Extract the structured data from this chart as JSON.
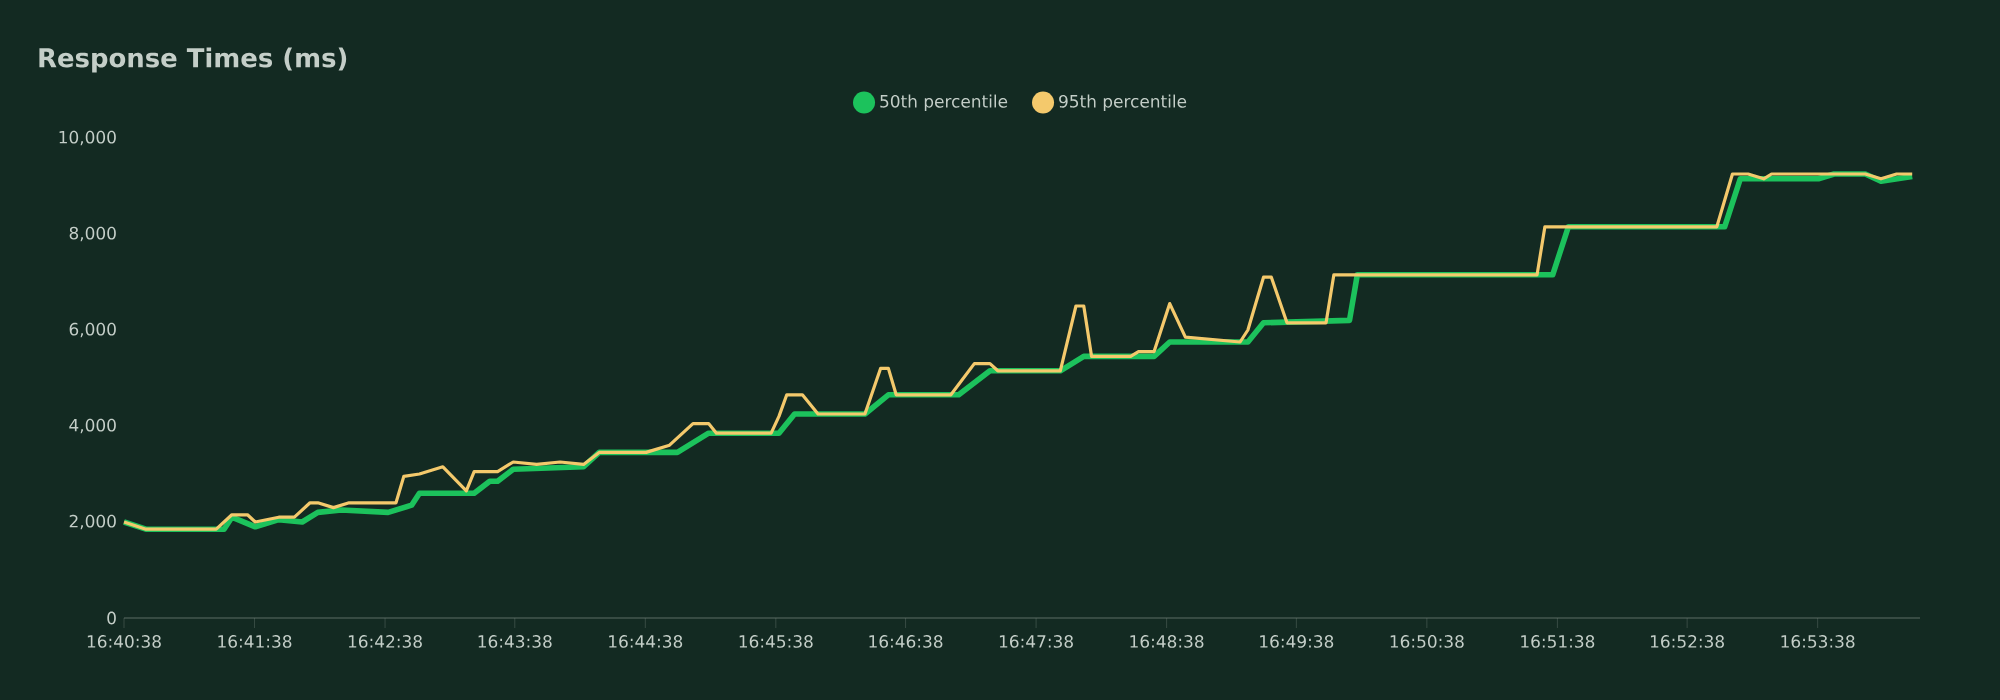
{
  "chart_data": {
    "type": "line",
    "title": "Response Times (ms)",
    "xlim": [
      16.6772,
      16.907
    ],
    "ylim": [
      0,
      10000
    ],
    "xticks": [
      {
        "value": 16.6772,
        "label": "16:40:38"
      },
      {
        "value": 16.6939,
        "label": "16:41:38"
      },
      {
        "value": 16.7106,
        "label": "16:42:38"
      },
      {
        "value": 16.7272,
        "label": "16:43:38"
      },
      {
        "value": 16.7439,
        "label": "16:44:38"
      },
      {
        "value": 16.7606,
        "label": "16:45:38"
      },
      {
        "value": 16.7772,
        "label": "16:46:38"
      },
      {
        "value": 16.7939,
        "label": "16:47:38"
      },
      {
        "value": 16.8106,
        "label": "16:48:38"
      },
      {
        "value": 16.8272,
        "label": "16:49:38"
      },
      {
        "value": 16.8439,
        "label": "16:50:38"
      },
      {
        "value": 16.8606,
        "label": "16:51:38"
      },
      {
        "value": 16.8772,
        "label": "16:52:38"
      },
      {
        "value": 16.8939,
        "label": "16:53:38"
      }
    ],
    "yticks": [
      0,
      {
        "value": 2000,
        "label": "2,000"
      },
      {
        "value": 4000,
        "label": "4,000"
      },
      {
        "value": 6000,
        "label": "6,000"
      },
      {
        "value": 8000,
        "label": "8,000"
      },
      {
        "value": 10000,
        "label": "10,000"
      }
    ],
    "legend": "top",
    "grid": false,
    "line_style": "solid",
    "series": [
      {
        "name": "50th percentile",
        "color": "#1cc25c",
        "x": [
          16.6772,
          16.68,
          16.69,
          16.691,
          16.694,
          16.697,
          16.7,
          16.702,
          16.705,
          16.711,
          16.714,
          16.715,
          16.722,
          16.724,
          16.725,
          16.727,
          16.736,
          16.738,
          16.748,
          16.752,
          16.76,
          16.761,
          16.763,
          16.772,
          16.775,
          16.784,
          16.788,
          16.797,
          16.8,
          16.809,
          16.811,
          16.821,
          16.823,
          16.834,
          16.835,
          16.86,
          16.862,
          16.882,
          16.884,
          16.894,
          16.896,
          16.9,
          16.902,
          16.906
        ],
        "values": [
          2000,
          1850,
          1850,
          2100,
          1900,
          2050,
          2000,
          2200,
          2250,
          2200,
          2350,
          2600,
          2600,
          2850,
          2850,
          3100,
          3150,
          3450,
          3450,
          3850,
          3850,
          3850,
          4250,
          4250,
          4650,
          4650,
          5150,
          5150,
          5450,
          5450,
          5750,
          5750,
          6150,
          6200,
          7150,
          7150,
          8150,
          8150,
          9150,
          9150,
          9250,
          9250,
          9100,
          9200
        ]
      },
      {
        "name": "95th percentile",
        "color": "#f4c96c",
        "x": [
          16.6772,
          16.68,
          16.689,
          16.691,
          16.693,
          16.694,
          16.697,
          16.699,
          16.701,
          16.702,
          16.704,
          16.706,
          16.712,
          16.713,
          16.715,
          16.718,
          16.721,
          16.722,
          16.725,
          16.727,
          16.73,
          16.733,
          16.736,
          16.738,
          16.744,
          16.747,
          16.75,
          16.752,
          16.753,
          16.76,
          16.761,
          16.762,
          16.764,
          16.766,
          16.772,
          16.774,
          16.775,
          16.776,
          16.783,
          16.786,
          16.788,
          16.789,
          16.797,
          16.799,
          16.8,
          16.801,
          16.806,
          16.807,
          16.809,
          16.811,
          16.813,
          16.82,
          16.821,
          16.823,
          16.824,
          16.826,
          16.831,
          16.832,
          16.858,
          16.859,
          16.881,
          16.883,
          16.885,
          16.887,
          16.888,
          16.9,
          16.902,
          16.904,
          16.906
        ],
        "values": [
          2000,
          1850,
          1850,
          2150,
          2150,
          2000,
          2100,
          2100,
          2400,
          2400,
          2300,
          2400,
          2400,
          2950,
          3000,
          3150,
          2650,
          3050,
          3050,
          3250,
          3200,
          3250,
          3200,
          3450,
          3450,
          3600,
          4050,
          4050,
          3850,
          3850,
          4200,
          4650,
          4650,
          4250,
          4250,
          5200,
          5200,
          4650,
          4650,
          5300,
          5300,
          5150,
          5150,
          6500,
          6500,
          5450,
          5450,
          5550,
          5550,
          6550,
          5850,
          5750,
          6000,
          7100,
          7100,
          6150,
          6150,
          7150,
          7150,
          8150,
          8150,
          9250,
          9250,
          9150,
          9250,
          9250,
          9150,
          9250,
          9250
        ]
      }
    ]
  }
}
